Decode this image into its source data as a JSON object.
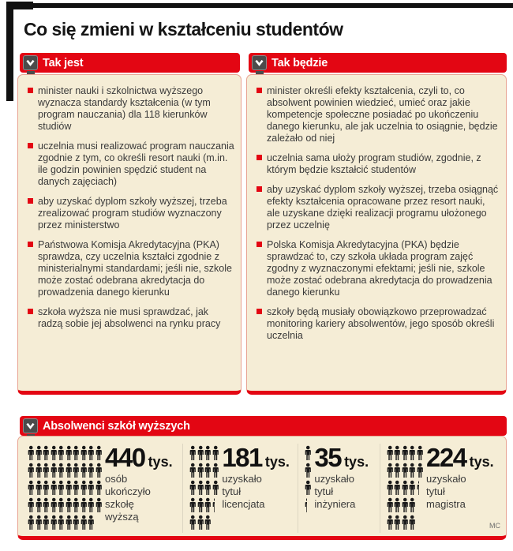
{
  "title": "Co się zmieni w kształceniu studentów",
  "colors": {
    "accent_red": "#e30613",
    "panel_background": "#f5edd6",
    "panel_border": "#e8a493",
    "chevron_box": "#4b4b4b",
    "body_text": "#3a3a3a",
    "pictogram": "#1a1a1a",
    "divider": "#ddd6c2"
  },
  "icons": {
    "header_icon": "chevron-down",
    "bullet_icon": "red-square",
    "pictogram_icon": "person"
  },
  "columns": [
    {
      "header": "Tak jest",
      "bullets": [
        "minister nauki i szkolnictwa wyższego wyznacza standardy kształcenia (w tym program nauczania) dla 118 kierunków studiów",
        "uczelnia musi realizować program nauczania zgodnie z tym, co określi resort nauki (m.in. ile godzin powinien spędzić student na danych zajęciach)",
        "aby uzyskać dyplom szkoły wyższej, trzeba zrealizować program studiów wyznaczony przez ministerstwo",
        "Państwowa Komisja Akredytacyjna (PKA) sprawdza, czy uczelnia kształci zgodnie z ministerialnymi standardami; jeśli nie, szkole może zostać odebrana akredytacja do prowadzenia danego kierunku",
        "szkoła wyższa nie musi sprawdzać, jak radzą sobie jej absolwenci na rynku pracy"
      ]
    },
    {
      "header": "Tak będzie",
      "bullets": [
        "minister określi efekty kształcenia, czyli to, co absolwent powinien wiedzieć, umieć oraz jakie kompetencje społeczne posiadać po ukończeniu danego kierunku, ale jak uczelnia to osiągnie, będzie zależało od niej",
        "uczelnia sama ułoży program studiów, zgodnie, z którym będzie kształcić studentów",
        "aby uzyskać dyplom szkoły wyższej, trzeba osiągnąć efekty kształcenia opracowane przez resort nauki, ale uzyskane dzięki realizacji programu ułożonego przez uczelnię",
        "Polska Komisja Akredytacyjna (PKA) będzie sprawdzać to, czy szkoła układa program zajęć zgodny z wyznaczonymi efektami; jeśli nie, szkole może zostać odebrana akredytacja do prowadzenia danego kierunku",
        "szkoły będą musiały obowiązkowo przeprowadzać monitoring kariery absolwentów, jego sposób określi uczelnia"
      ]
    }
  ],
  "graduates": {
    "header": "Absolwenci szkół wyższych",
    "credit": "MC",
    "groups": [
      {
        "number": "440",
        "unit": "tys.",
        "lines": [
          "osób",
          "ukończyło",
          "szkołę",
          "wyższą"
        ],
        "icon_rows": [
          10,
          10,
          10,
          10,
          9
        ]
      },
      {
        "number": "181",
        "unit": "tys.",
        "lines": [
          "uzyskało",
          "tytuł",
          "licencjata"
        ],
        "icon_rows": [
          4,
          4,
          4,
          3.4,
          3
        ]
      },
      {
        "number": "35",
        "unit": "tys.",
        "lines": [
          "uzyskało",
          "tytuł",
          "inżyniera"
        ],
        "icon_rows": [
          1,
          1,
          1,
          0.4
        ]
      },
      {
        "number": "224",
        "unit": "tys.",
        "lines": [
          "uzyskało",
          "tytuł",
          "magistra"
        ],
        "icon_rows": [
          5,
          5,
          4.4,
          4,
          4
        ]
      }
    ]
  },
  "chart_data": {
    "type": "pictograph",
    "title": "Absolwenci szkół wyższych",
    "categories": [
      "osób ukończyło szkołę wyższą",
      "uzyskało tytuł licencjata",
      "uzyskało tytuł inżyniera",
      "uzyskało tytuł magistra"
    ],
    "values": [
      440,
      181,
      35,
      224
    ],
    "unit": "tys.",
    "legend_position": "none",
    "grid": false
  }
}
